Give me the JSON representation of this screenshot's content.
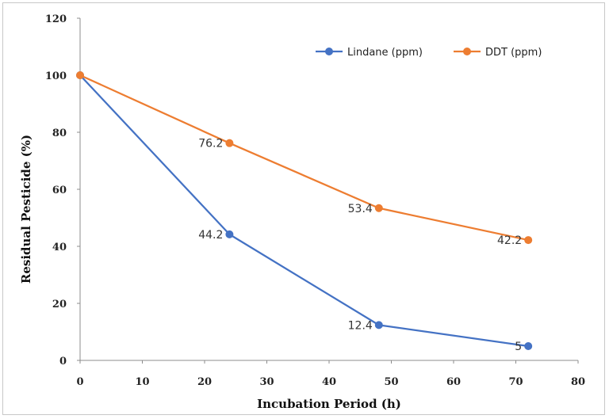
{
  "chart_data": {
    "type": "line",
    "title": "",
    "xlabel": "Incubation Period (h)",
    "ylabel": "Residual Pesticide (%)",
    "xlim": [
      0,
      80
    ],
    "ylim": [
      0,
      120
    ],
    "xticks": [
      0,
      10,
      20,
      30,
      40,
      50,
      60,
      70,
      80
    ],
    "yticks": [
      0,
      20,
      40,
      60,
      80,
      100,
      120
    ],
    "grid": false,
    "legend_position": "top-right",
    "x": [
      0,
      24,
      48,
      72
    ],
    "series": [
      {
        "name": "Lindane (ppm)",
        "color": "#4472C4",
        "values": [
          100,
          44.2,
          12.4,
          5
        ],
        "data_labels": [
          "",
          "44.2",
          "12.4",
          "5"
        ]
      },
      {
        "name": "DDT (ppm)",
        "color": "#ED7D31",
        "values": [
          100,
          76.2,
          53.4,
          42.2
        ],
        "data_labels": [
          "",
          "76.2",
          "53.4",
          "42.2"
        ]
      }
    ]
  }
}
